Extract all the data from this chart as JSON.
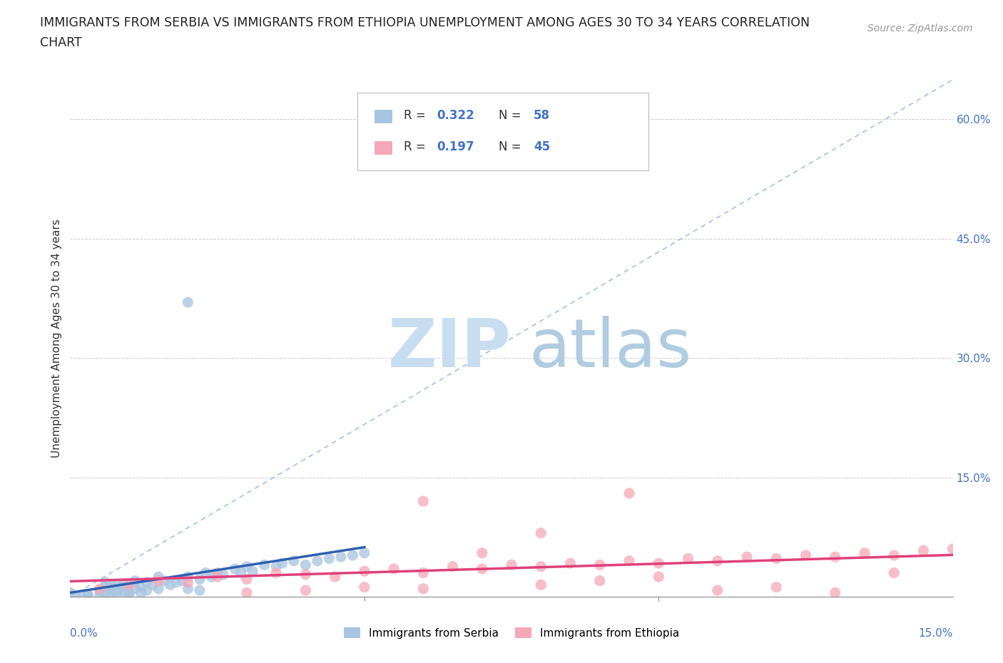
{
  "title_line1": "IMMIGRANTS FROM SERBIA VS IMMIGRANTS FROM ETHIOPIA UNEMPLOYMENT AMONG AGES 30 TO 34 YEARS CORRELATION",
  "title_line2": "CHART",
  "source_text": "Source: ZipAtlas.com",
  "ylabel_label": "Unemployment Among Ages 30 to 34 years",
  "xlim": [
    0.0,
    0.15
  ],
  "ylim": [
    0.0,
    0.65
  ],
  "yticks": [
    0.0,
    0.15,
    0.3,
    0.45,
    0.6
  ],
  "ytick_labels": [
    "",
    "15.0%",
    "30.0%",
    "45.0%",
    "60.0%"
  ],
  "serbia_R": 0.322,
  "serbia_N": 58,
  "ethiopia_R": 0.197,
  "ethiopia_N": 45,
  "serbia_color": "#a8c4e0",
  "ethiopia_color": "#f4a8b8",
  "serbia_line_color": "#3060b0",
  "ethiopia_line_color": "#e0407a",
  "diag_color": "#90b8e0",
  "watermark_ZIP_color": "#c8ddf0",
  "watermark_atlas_color": "#b0cce0",
  "legend_serbia_x": [
    0.0,
    0.003,
    0.005,
    0.006,
    0.006,
    0.007,
    0.007,
    0.008,
    0.008,
    0.009,
    0.009,
    0.01,
    0.01,
    0.011,
    0.011,
    0.012,
    0.013,
    0.013,
    0.014,
    0.015,
    0.015,
    0.016,
    0.017,
    0.018,
    0.019,
    0.02,
    0.02,
    0.022,
    0.023,
    0.024,
    0.025,
    0.026,
    0.028,
    0.029,
    0.03,
    0.031,
    0.033,
    0.035,
    0.036,
    0.038,
    0.04,
    0.042,
    0.044,
    0.046,
    0.048,
    0.05,
    0.01,
    0.012,
    0.008,
    0.005,
    0.003,
    0.002,
    0.001,
    0.007,
    0.006,
    0.009,
    0.02,
    0.022
  ],
  "legend_serbia_y": [
    0.005,
    0.003,
    0.008,
    0.012,
    0.005,
    0.01,
    0.004,
    0.008,
    0.015,
    0.007,
    0.012,
    0.006,
    0.015,
    0.01,
    0.02,
    0.012,
    0.018,
    0.008,
    0.015,
    0.01,
    0.025,
    0.02,
    0.015,
    0.018,
    0.02,
    0.025,
    0.01,
    0.022,
    0.03,
    0.025,
    0.03,
    0.028,
    0.035,
    0.03,
    0.038,
    0.032,
    0.04,
    0.038,
    0.042,
    0.045,
    0.04,
    0.045,
    0.048,
    0.05,
    0.052,
    0.055,
    0.003,
    0.005,
    0.002,
    0.002,
    0.001,
    0.001,
    0.0,
    0.013,
    0.018,
    0.016,
    0.37,
    0.008
  ],
  "legend_ethiopia_x": [
    0.005,
    0.01,
    0.015,
    0.02,
    0.025,
    0.03,
    0.035,
    0.04,
    0.045,
    0.05,
    0.055,
    0.06,
    0.065,
    0.07,
    0.075,
    0.08,
    0.085,
    0.09,
    0.095,
    0.1,
    0.105,
    0.11,
    0.115,
    0.12,
    0.125,
    0.13,
    0.135,
    0.14,
    0.145,
    0.15,
    0.03,
    0.04,
    0.05,
    0.06,
    0.07,
    0.08,
    0.09,
    0.1,
    0.11,
    0.12,
    0.13,
    0.14,
    0.06,
    0.08,
    0.095
  ],
  "legend_ethiopia_y": [
    0.01,
    0.015,
    0.02,
    0.018,
    0.025,
    0.022,
    0.03,
    0.028,
    0.025,
    0.032,
    0.035,
    0.03,
    0.038,
    0.035,
    0.04,
    0.038,
    0.042,
    0.04,
    0.045,
    0.042,
    0.048,
    0.045,
    0.05,
    0.048,
    0.052,
    0.05,
    0.055,
    0.052,
    0.058,
    0.06,
    0.005,
    0.008,
    0.012,
    0.01,
    0.055,
    0.015,
    0.02,
    0.025,
    0.008,
    0.012,
    0.005,
    0.03,
    0.12,
    0.08,
    0.13
  ]
}
